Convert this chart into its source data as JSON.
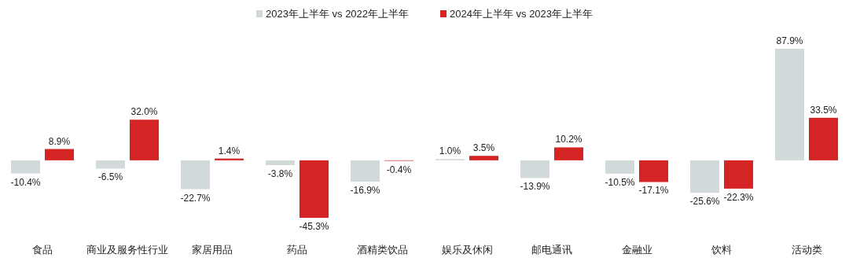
{
  "chart_data": {
    "type": "bar",
    "legend": "top",
    "categories": [
      "食品",
      "商业及服务性行业",
      "家居用品",
      "药品",
      "酒精类饮品",
      "娱乐及休闲",
      "邮电通讯",
      "金融业",
      "饮料",
      "活动类"
    ],
    "series": [
      {
        "name": "2023年上半年 vs 2022年上半年",
        "color": "#d2d9db",
        "values": [
          -10.4,
          -6.5,
          -22.7,
          -3.8,
          -16.9,
          1.0,
          -13.9,
          -10.5,
          -25.6,
          87.9
        ],
        "value_labels": [
          "-10.4%",
          "-6.5%",
          "-22.7%",
          "-3.8%",
          "-16.9%",
          "1.0%",
          "-13.9%",
          "-10.5%",
          "-25.6%",
          "87.9%"
        ]
      },
      {
        "name": "2024年上半年 vs 2023年上半年",
        "color": "#d42424",
        "values": [
          8.9,
          32.0,
          1.4,
          -45.3,
          -0.4,
          3.5,
          10.2,
          -17.1,
          -22.3,
          33.5
        ],
        "value_labels": [
          "8.9%",
          "32.0%",
          "1.4%",
          "-45.3%",
          "-0.4%",
          "3.5%",
          "10.2%",
          "-17.1%",
          "-22.3%",
          "33.5%"
        ]
      }
    ]
  }
}
